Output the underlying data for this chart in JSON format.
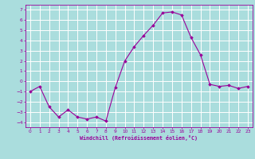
{
  "x": [
    0,
    1,
    2,
    3,
    4,
    5,
    6,
    7,
    8,
    9,
    10,
    11,
    12,
    13,
    14,
    15,
    16,
    17,
    18,
    19,
    20,
    21,
    22,
    23
  ],
  "y": [
    -1.0,
    -0.5,
    -2.5,
    -3.5,
    -2.8,
    -3.5,
    -3.7,
    -3.5,
    -3.9,
    -0.6,
    2.0,
    3.4,
    4.5,
    5.5,
    6.7,
    6.8,
    6.5,
    4.3,
    2.6,
    -0.3,
    -0.5,
    -0.4,
    -0.7,
    -0.5
  ],
  "line_color": "#990099",
  "marker_color": "#990099",
  "bg_color": "#aadddd",
  "grid_color": "#ffffff",
  "xlabel": "Windchill (Refroidissement éolien,°C)",
  "xlabel_color": "#990099",
  "tick_color": "#990099",
  "ylim": [
    -4.5,
    7.5
  ],
  "xlim": [
    -0.5,
    23.5
  ],
  "yticks": [
    -4,
    -3,
    -2,
    -1,
    0,
    1,
    2,
    3,
    4,
    5,
    6,
    7
  ],
  "xticks": [
    0,
    1,
    2,
    3,
    4,
    5,
    6,
    7,
    8,
    9,
    10,
    11,
    12,
    13,
    14,
    15,
    16,
    17,
    18,
    19,
    20,
    21,
    22,
    23
  ],
  "figsize": [
    3.2,
    2.0
  ],
  "dpi": 100
}
